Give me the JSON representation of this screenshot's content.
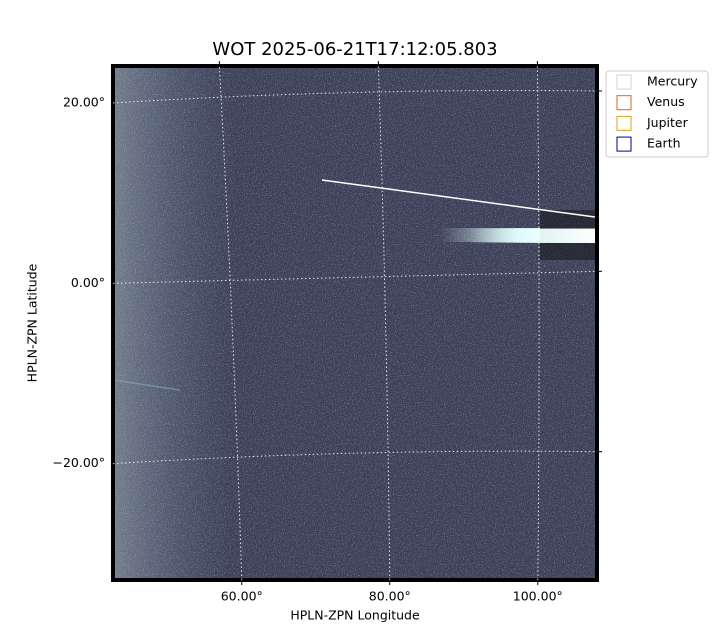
{
  "chart_data": {
    "type": "image",
    "title": "WOT 2025-06-21T17:12:05.803",
    "x_label": "HPLN-ZPN Longitude",
    "y_label": "HPLN-ZPN Latitude",
    "xlim": [
      42.6,
      108
    ],
    "ylim": [
      -32.9,
      24.1
    ],
    "xticks": [
      {
        "value": 60,
        "label": "60.00°"
      },
      {
        "value": 80,
        "label": "80.00°"
      },
      {
        "value": 100,
        "label": "100.00°"
      }
    ],
    "yticks": [
      {
        "value": -20,
        "label": "−20.00°"
      },
      {
        "value": 0,
        "label": "0.00°"
      },
      {
        "value": 20,
        "label": "20.00°"
      }
    ],
    "grid": true,
    "legend": [
      {
        "name": "Mercury",
        "color": "#d3d3d3"
      },
      {
        "name": "Venus",
        "color": "#d2691e"
      },
      {
        "name": "Jupiter",
        "color": "#daa520"
      },
      {
        "name": "Earth",
        "color": "#000080"
      }
    ],
    "legend_position": "outside-upper-right"
  }
}
